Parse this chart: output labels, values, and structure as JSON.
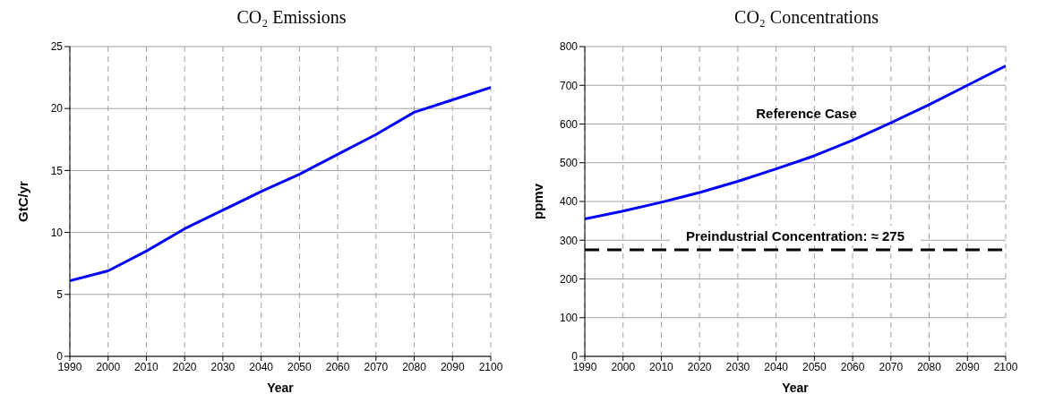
{
  "chart_data": [
    {
      "type": "line",
      "title": "CO₂ Emissions",
      "xlabel": "Year",
      "ylabel": "GtC/yr",
      "x": [
        1990,
        2000,
        2010,
        2020,
        2030,
        2040,
        2050,
        2060,
        2070,
        2080,
        2090,
        2100
      ],
      "series": [
        {
          "color": "#0000ff",
          "values": [
            6.1,
            6.9,
            8.5,
            10.3,
            11.8,
            13.3,
            14.7,
            16.3,
            17.9,
            19.7,
            20.7,
            21.7
          ]
        }
      ],
      "xlim": [
        1990,
        2100
      ],
      "xticks": [
        1990,
        2000,
        2010,
        2020,
        2030,
        2040,
        2050,
        2060,
        2070,
        2080,
        2090,
        2100
      ],
      "ylim": [
        0,
        25
      ],
      "yticks": [
        0,
        5,
        10,
        15,
        20,
        25
      ],
      "grid": true,
      "legend": false
    },
    {
      "type": "line",
      "title": "CO₂ Concentrations",
      "xlabel": "Year",
      "ylabel": "ppmv",
      "x": [
        1990,
        2000,
        2010,
        2020,
        2030,
        2040,
        2050,
        2060,
        2070,
        2080,
        2090,
        2100
      ],
      "series": [
        {
          "color": "#0000ff",
          "values": [
            355,
            375,
            398,
            423,
            452,
            484,
            518,
            558,
            603,
            650,
            700,
            750
          ]
        }
      ],
      "xlim": [
        1990,
        2100
      ],
      "xticks": [
        1990,
        2000,
        2010,
        2020,
        2030,
        2040,
        2050,
        2060,
        2070,
        2080,
        2090,
        2100
      ],
      "ylim": [
        0,
        800
      ],
      "yticks": [
        0,
        100,
        200,
        300,
        400,
        500,
        600,
        700,
        800
      ],
      "grid": true,
      "legend": false,
      "annotations": [
        "Reference Case"
      ],
      "ref_lines": [
        {
          "axis": "y",
          "value": 275,
          "label": "Preindustrial Concentration: ≈ 275",
          "color": "#000000",
          "line_style": "dashed"
        }
      ]
    }
  ]
}
